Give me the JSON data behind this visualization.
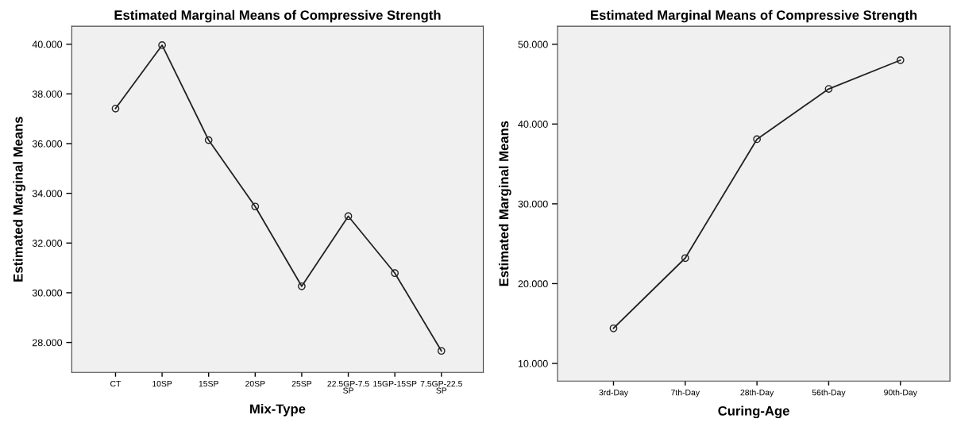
{
  "chart_data": [
    {
      "type": "line",
      "title": "Estimated Marginal Means of Compressive Strength",
      "xlabel": "Mix-Type",
      "ylabel": "Estimated Marginal Means",
      "categories": [
        "CT",
        "10SP",
        "15SP",
        "20SP",
        "25SP",
        "22.5GP-7.5\nSP",
        "15GP-15SP",
        "7.5GP-22.5\nSP"
      ],
      "values": [
        37.41,
        39.96,
        36.14,
        33.47,
        30.26,
        33.08,
        30.79,
        27.66
      ],
      "color": "#222222",
      "marker": "circle",
      "ylim": [
        26.8,
        40.72
      ],
      "yticks": [
        {
          "value": 28,
          "label": "28.000"
        },
        {
          "value": 30,
          "label": "30.000"
        },
        {
          "value": 32,
          "label": "32.000"
        },
        {
          "value": 34,
          "label": "34.000"
        },
        {
          "value": 36,
          "label": "36.000"
        },
        {
          "value": 38,
          "label": "38.000"
        },
        {
          "value": 40,
          "label": "40.000"
        }
      ]
    },
    {
      "type": "line",
      "title": "Estimated Marginal Means of Compressive Strength",
      "xlabel": "Curing-Age",
      "ylabel": "Estimated Marginal Means",
      "categories": [
        "3rd-Day",
        "7th-Day",
        "28th-Day",
        "56th-Day",
        "90th-Day"
      ],
      "values": [
        14.4,
        23.2,
        38.1,
        44.4,
        48.0
      ],
      "color": "#222222",
      "marker": "circle",
      "ylim": [
        7.79,
        52.25
      ],
      "yticks": [
        {
          "value": 10,
          "label": "10.000"
        },
        {
          "value": 20,
          "label": "20.000"
        },
        {
          "value": 30,
          "label": "30.000"
        },
        {
          "value": 40,
          "label": "40.000"
        },
        {
          "value": 50,
          "label": "50.000"
        }
      ]
    }
  ]
}
